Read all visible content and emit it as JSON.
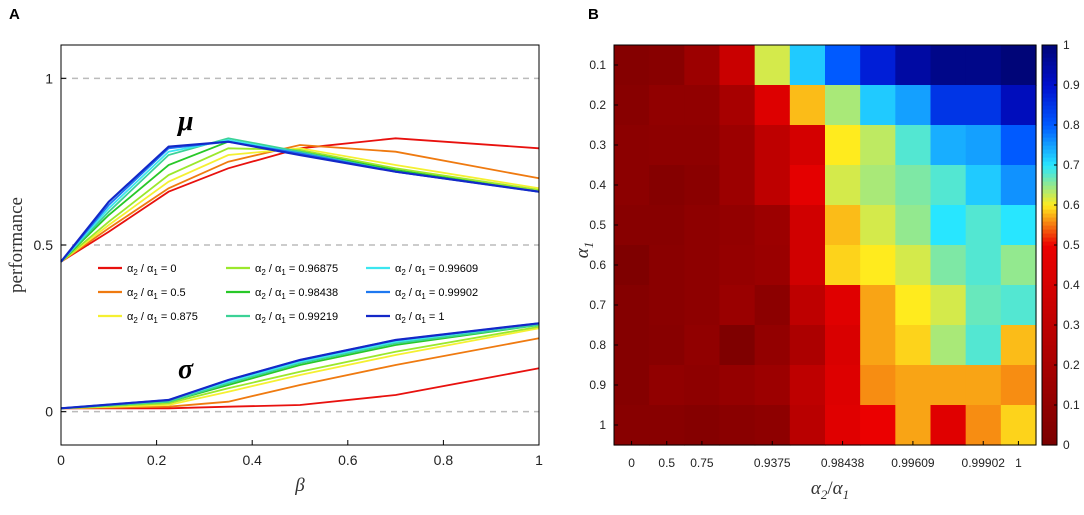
{
  "panels": {
    "a_label": "A",
    "b_label": "B"
  },
  "chart_data": [
    {
      "type": "line",
      "panel": "A",
      "xlabel": "β",
      "ylabel": "performance",
      "xlim": [
        0,
        1
      ],
      "ylim": [
        -0.1,
        1.1
      ],
      "xticks": [
        0,
        0.2,
        0.4,
        0.6,
        0.8,
        1
      ],
      "xtick_labels": [
        "0",
        "0.2",
        "0.4",
        "0.6",
        "0.8",
        "1"
      ],
      "yticks": [
        0,
        0.5,
        1
      ],
      "ytick_labels": [
        "0",
        "0.5",
        "1"
      ],
      "reference_lines": [
        0,
        0.5,
        1
      ],
      "annotations": [
        {
          "text": "μ",
          "x": 0.27,
          "y": 0.87
        },
        {
          "text": "σ",
          "x": 0.27,
          "y": 0.12
        }
      ],
      "legend_prefix": "α2 / α1 =",
      "series": [
        {
          "name": "0",
          "color": "#e8110e",
          "mu_x": [
            0,
            0.1,
            0.225,
            0.35,
            0.5,
            0.7,
            1
          ],
          "mu": [
            0.45,
            0.54,
            0.66,
            0.73,
            0.79,
            0.82,
            0.79
          ],
          "sigma_x": [
            0,
            0.225,
            0.35,
            0.5,
            0.7,
            1
          ],
          "sigma": [
            0.01,
            0.01,
            0.015,
            0.02,
            0.05,
            0.13
          ]
        },
        {
          "name": "0.5",
          "color": "#ef7a10",
          "mu_x": [
            0,
            0.1,
            0.225,
            0.35,
            0.5,
            0.7,
            1
          ],
          "mu": [
            0.45,
            0.55,
            0.67,
            0.75,
            0.8,
            0.78,
            0.7
          ],
          "sigma_x": [
            0,
            0.225,
            0.35,
            0.5,
            0.7,
            1
          ],
          "sigma": [
            0.01,
            0.015,
            0.03,
            0.08,
            0.14,
            0.22
          ]
        },
        {
          "name": "0.875",
          "color": "#f5f032",
          "mu_x": [
            0,
            0.1,
            0.225,
            0.35,
            0.5,
            0.7,
            1
          ],
          "mu": [
            0.45,
            0.56,
            0.69,
            0.77,
            0.79,
            0.74,
            0.67
          ],
          "sigma_x": [
            0,
            0.225,
            0.35,
            0.5,
            0.7,
            1
          ],
          "sigma": [
            0.01,
            0.02,
            0.06,
            0.11,
            0.17,
            0.25
          ]
        },
        {
          "name": "0.96875",
          "color": "#9be82c",
          "mu_x": [
            0,
            0.1,
            0.225,
            0.35,
            0.5,
            0.7,
            1
          ],
          "mu": [
            0.45,
            0.57,
            0.71,
            0.79,
            0.785,
            0.73,
            0.665
          ],
          "sigma_x": [
            0,
            0.225,
            0.35,
            0.5,
            0.7,
            1
          ],
          "sigma": [
            0.01,
            0.025,
            0.07,
            0.12,
            0.18,
            0.255
          ]
        },
        {
          "name": "0.98438",
          "color": "#28c828",
          "mu_x": [
            0,
            0.1,
            0.225,
            0.35,
            0.5,
            0.7,
            1
          ],
          "mu": [
            0.45,
            0.59,
            0.74,
            0.81,
            0.78,
            0.725,
            0.66
          ],
          "sigma_x": [
            0,
            0.225,
            0.35,
            0.5,
            0.7,
            1
          ],
          "sigma": [
            0.01,
            0.03,
            0.08,
            0.14,
            0.2,
            0.26
          ]
        },
        {
          "name": "0.99219",
          "color": "#3cd296",
          "mu_x": [
            0,
            0.1,
            0.225,
            0.35,
            0.5,
            0.7,
            1
          ],
          "mu": [
            0.45,
            0.6,
            0.77,
            0.82,
            0.78,
            0.72,
            0.66
          ],
          "sigma_x": [
            0,
            0.225,
            0.35,
            0.5,
            0.7,
            1
          ],
          "sigma": [
            0.01,
            0.03,
            0.085,
            0.145,
            0.205,
            0.26
          ]
        },
        {
          "name": "0.99609",
          "color": "#3ce6f0",
          "mu_x": [
            0,
            0.1,
            0.225,
            0.35,
            0.5,
            0.7,
            1
          ],
          "mu": [
            0.45,
            0.61,
            0.78,
            0.815,
            0.775,
            0.72,
            0.66
          ],
          "sigma_x": [
            0,
            0.225,
            0.35,
            0.5,
            0.7,
            1
          ],
          "sigma": [
            0.01,
            0.035,
            0.09,
            0.15,
            0.21,
            0.265
          ]
        },
        {
          "name": "0.99902",
          "color": "#1e78f0",
          "mu_x": [
            0,
            0.1,
            0.225,
            0.35,
            0.5,
            0.7,
            1
          ],
          "mu": [
            0.45,
            0.62,
            0.79,
            0.81,
            0.775,
            0.72,
            0.66
          ],
          "sigma_x": [
            0,
            0.225,
            0.35,
            0.5,
            0.7,
            1
          ],
          "sigma": [
            0.01,
            0.035,
            0.095,
            0.155,
            0.215,
            0.265
          ]
        },
        {
          "name": "1",
          "color": "#1428c8",
          "mu_x": [
            0,
            0.1,
            0.225,
            0.35,
            0.5,
            0.7,
            1
          ],
          "mu": [
            0.45,
            0.63,
            0.795,
            0.81,
            0.77,
            0.72,
            0.66
          ],
          "sigma_x": [
            0,
            0.225,
            0.35,
            0.5,
            0.7,
            1
          ],
          "sigma": [
            0.01,
            0.035,
            0.095,
            0.155,
            0.215,
            0.265
          ]
        }
      ]
    },
    {
      "type": "heatmap",
      "panel": "B",
      "xlabel": "α2/α1",
      "ylabel": "α1",
      "x_tick_labels": [
        "0",
        "0.5",
        "0.75",
        "0.9375",
        "0.98438",
        "0.99609",
        "0.99902",
        "1"
      ],
      "x_tick_columns": [
        0,
        1,
        2,
        4,
        6,
        8,
        10,
        11
      ],
      "y_tick_labels": [
        "0.1",
        "0.2",
        "0.3",
        "0.4",
        "0.5",
        "0.6",
        "0.7",
        "0.8",
        "0.9",
        "1"
      ],
      "colorbar_ticks": [
        0,
        0.1,
        0.2,
        0.3,
        0.4,
        0.5,
        0.6,
        0.7,
        0.8,
        0.9,
        1
      ],
      "colorbar_tick_labels": [
        "0",
        "0.1",
        "0.2",
        "0.3",
        "0.4",
        "0.5",
        "0.6",
        "0.7",
        "0.8",
        "0.9",
        "1"
      ],
      "clim": [
        0,
        1
      ],
      "values": [
        [
          0.05,
          0.06,
          0.15,
          0.35,
          0.62,
          0.72,
          0.8,
          0.88,
          0.95,
          0.98,
          0.98,
          1.0
        ],
        [
          0.06,
          0.1,
          0.1,
          0.2,
          0.44,
          0.58,
          0.64,
          0.72,
          0.75,
          0.85,
          0.85,
          0.92
        ],
        [
          0.08,
          0.09,
          0.09,
          0.15,
          0.3,
          0.4,
          0.6,
          0.63,
          0.68,
          0.74,
          0.75,
          0.8
        ],
        [
          0.08,
          0.05,
          0.07,
          0.15,
          0.3,
          0.47,
          0.62,
          0.64,
          0.66,
          0.68,
          0.72,
          0.76
        ],
        [
          0.06,
          0.06,
          0.09,
          0.11,
          0.15,
          0.38,
          0.58,
          0.62,
          0.65,
          0.7,
          0.68,
          0.7
        ],
        [
          0.02,
          0.07,
          0.09,
          0.12,
          0.14,
          0.38,
          0.59,
          0.6,
          0.62,
          0.66,
          0.68,
          0.65
        ],
        [
          0.05,
          0.07,
          0.09,
          0.14,
          0.08,
          0.3,
          0.45,
          0.57,
          0.6,
          0.62,
          0.67,
          0.68
        ],
        [
          0.05,
          0.06,
          0.1,
          0.02,
          0.11,
          0.22,
          0.42,
          0.57,
          0.59,
          0.64,
          0.68,
          0.58
        ],
        [
          0.05,
          0.1,
          0.09,
          0.12,
          0.15,
          0.3,
          0.44,
          0.56,
          0.57,
          0.57,
          0.57,
          0.56
        ],
        [
          0.06,
          0.06,
          0.05,
          0.07,
          0.09,
          0.28,
          0.45,
          0.5,
          0.57,
          0.45,
          0.56,
          0.59
        ]
      ]
    }
  ]
}
